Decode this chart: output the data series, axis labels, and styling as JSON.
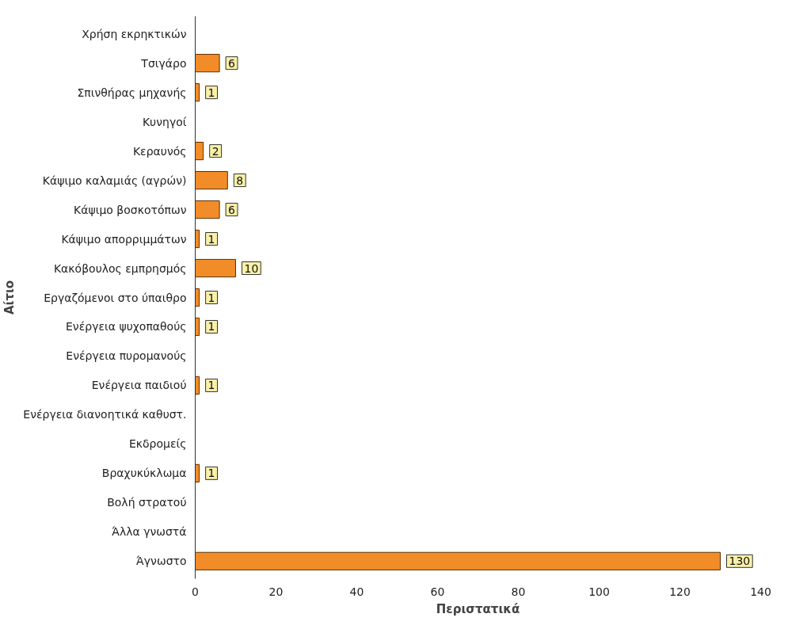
{
  "chart_data": {
    "type": "bar",
    "orientation": "horizontal",
    "xlabel": "Περιστατικά",
    "ylabel": "Αίτιο",
    "categories": [
      "Χρήση εκρηκτικών",
      "Τσιγάρο",
      "Σπινθήρας μηχανής",
      "Κυνηγοί",
      "Κεραυνός",
      "Κάψιμο καλαμιάς (αγρών)",
      "Κάψιμο βοσκοτόπων",
      "Κάψιμο απορριμμάτων",
      "Κακόβουλος εμπρησμός",
      "Εργαζόμενοι στο ύπαιθρο",
      "Ενέργεια ψυχοπαθούς",
      "Ενέργεια πυρομανούς",
      "Ενέργεια παιδιού",
      "Ενέργεια διανοητικά καθυστ.",
      "Εκδρομείς",
      "Βραχυκύκλωμα",
      "Βολή στρατού",
      "Άλλα γνωστά",
      "Άγνωστο"
    ],
    "values": [
      null,
      6,
      1,
      null,
      2,
      8,
      6,
      1,
      10,
      1,
      1,
      null,
      1,
      null,
      null,
      1,
      null,
      null,
      130
    ],
    "color": "#f28c28",
    "xlim": [
      0,
      140
    ],
    "xticks": [
      0,
      20,
      40,
      60,
      80,
      100,
      120,
      140
    ],
    "data_labels": true,
    "grid": false
  }
}
